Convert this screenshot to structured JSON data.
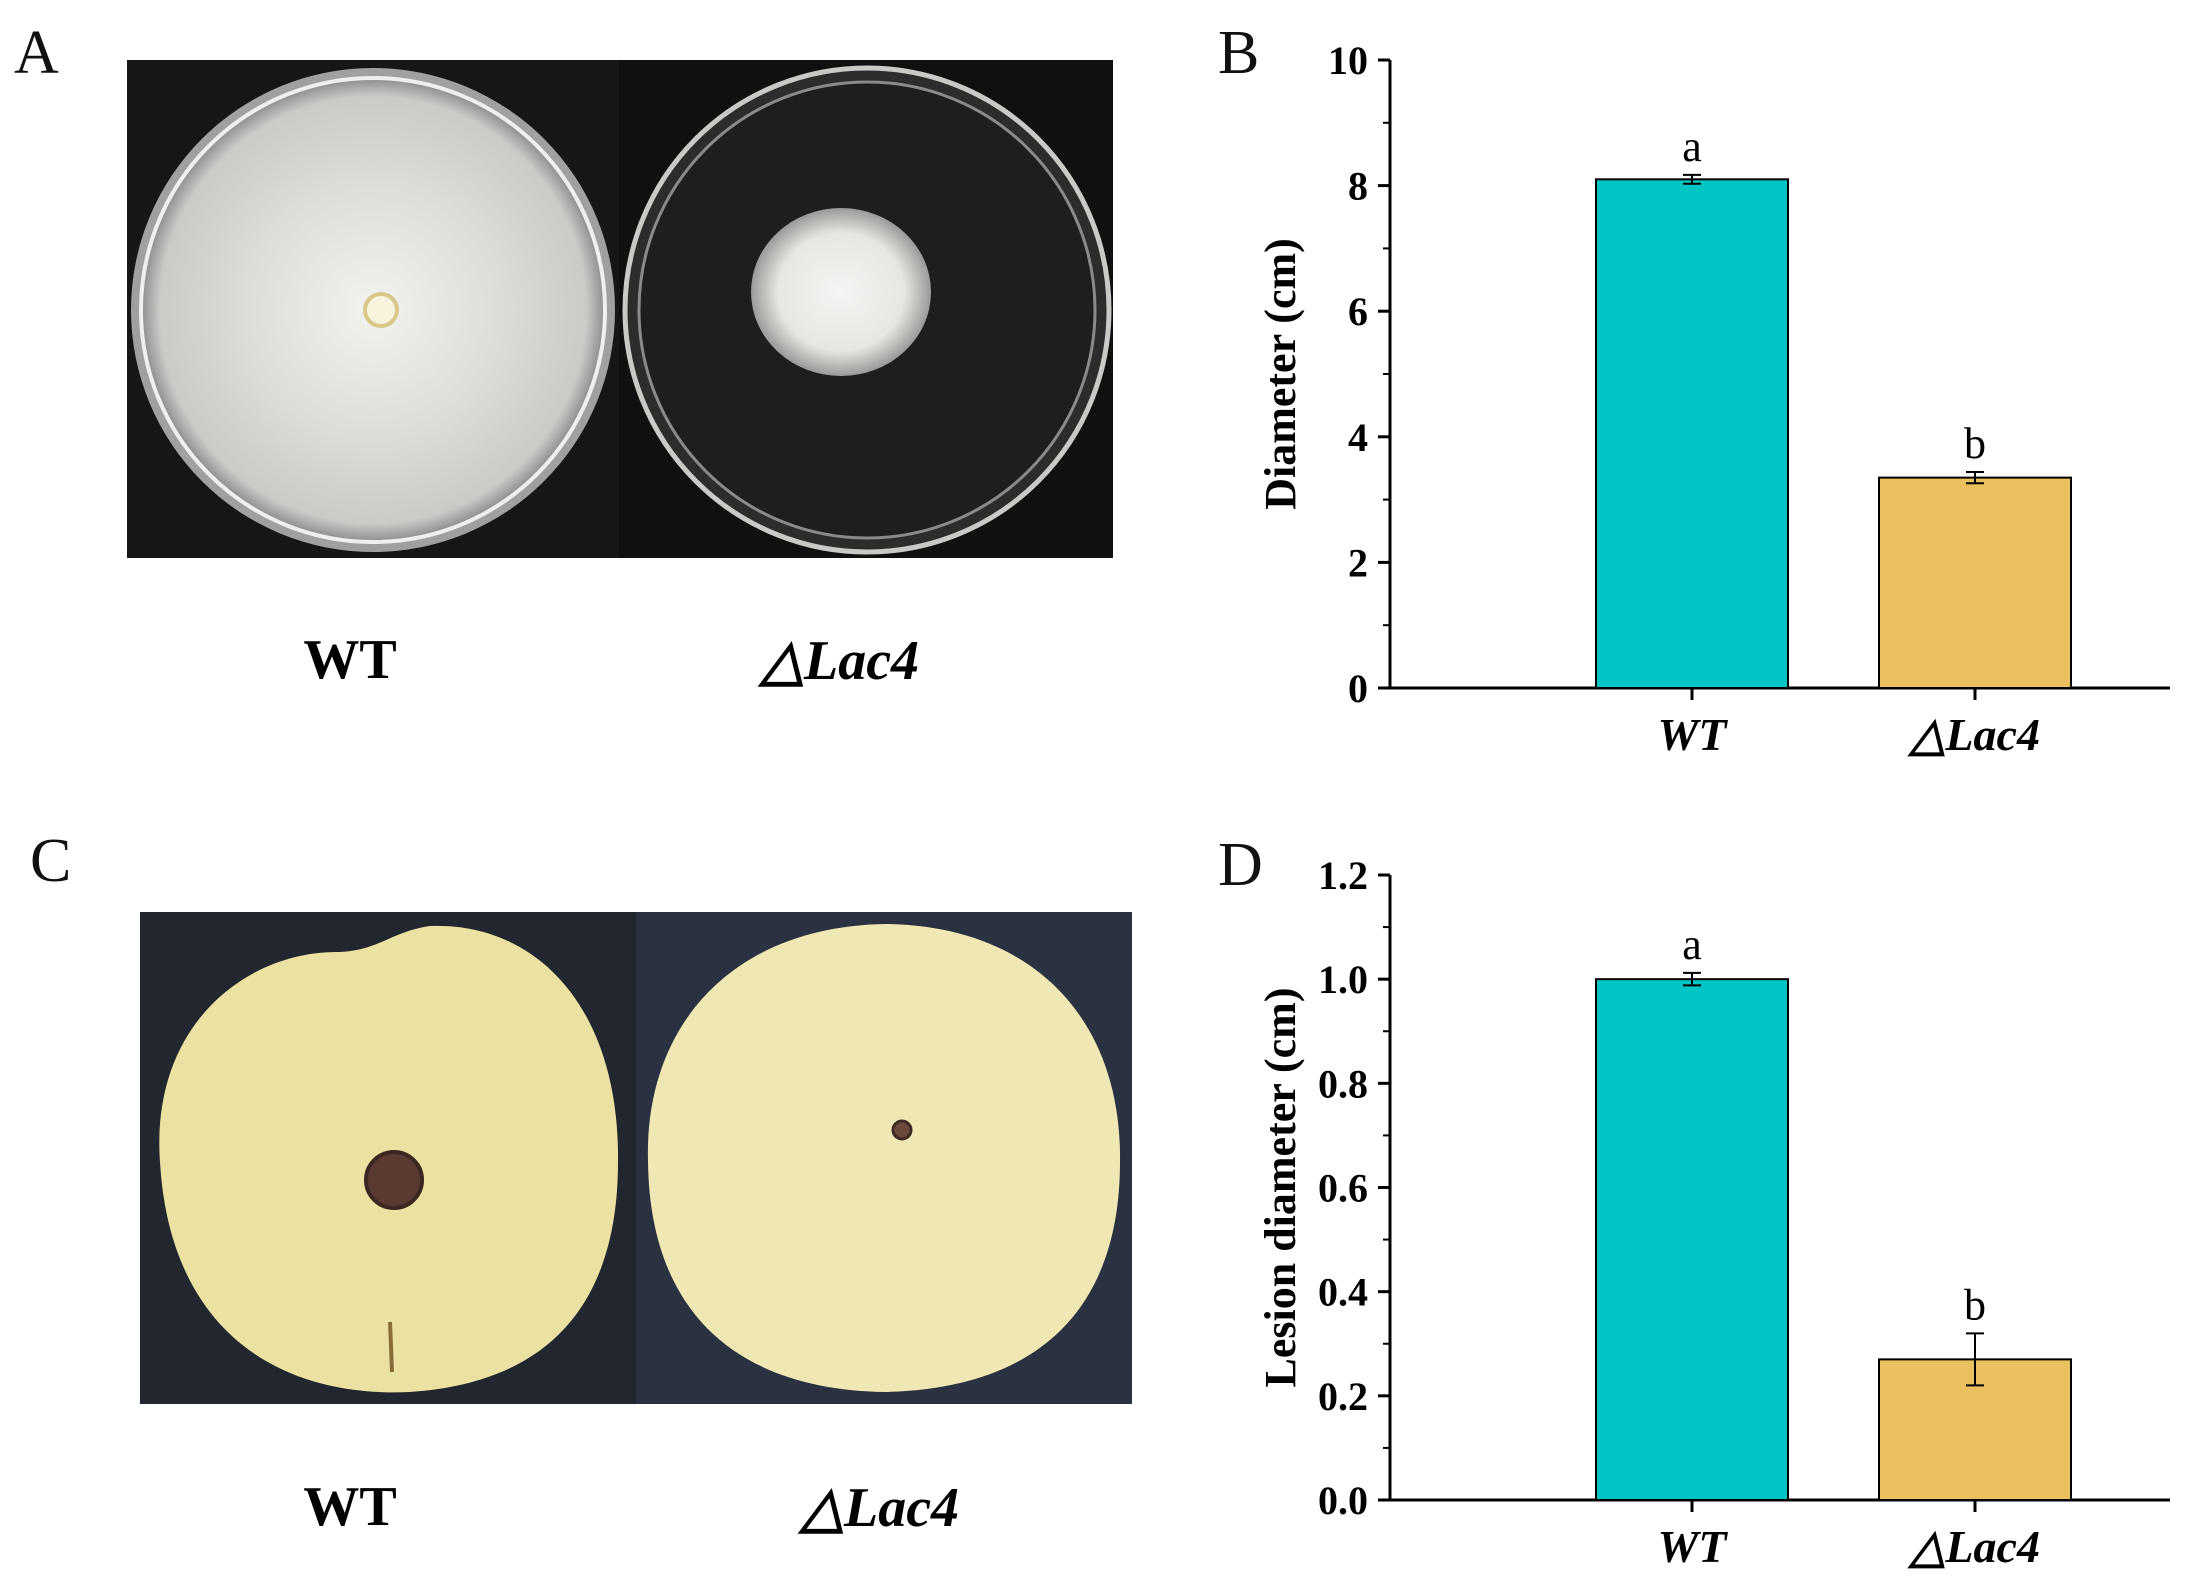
{
  "panels": {
    "A": {
      "letter": "A",
      "labels": [
        "WT",
        "△Lac4"
      ],
      "images": [
        {
          "name": "wt-colony-petri-dish",
          "description_icon": "petri-dish-full-growth-icon"
        },
        {
          "name": "lac4-colony-petri-dish",
          "description_icon": "petri-dish-small-colony-icon"
        }
      ]
    },
    "B": {
      "letter": "B"
    },
    "C": {
      "letter": "C",
      "labels": [
        "WT",
        "△Lac4"
      ],
      "images": [
        {
          "name": "wt-pear-lesion",
          "description_icon": "pear-large-lesion-icon"
        },
        {
          "name": "lac4-pear-lesion",
          "description_icon": "pear-small-lesion-icon"
        }
      ]
    },
    "D": {
      "letter": "D"
    }
  },
  "colors": {
    "wt_bar": "#00C5C5",
    "lac4_bar": "#EBC05F",
    "photo_background": "#1a1a1a",
    "pear_background": "#252a33",
    "pear_skin": "#ece3a6"
  },
  "chart_data": [
    {
      "panel": "B",
      "type": "bar",
      "categories": [
        "WT",
        "△Lac4"
      ],
      "values": [
        8.1,
        3.35
      ],
      "errors": [
        0.07,
        0.09
      ],
      "significance": [
        "a",
        "b"
      ],
      "ylabel": "Diameter (cm)",
      "ylim": [
        0,
        10
      ],
      "yticks": [
        "0",
        "2",
        "4",
        "6",
        "8",
        "10"
      ],
      "ytick_values": [
        0,
        2,
        4,
        6,
        8,
        10
      ],
      "colors": [
        "#00C5C5",
        "#EBC05F"
      ]
    },
    {
      "panel": "D",
      "type": "bar",
      "categories": [
        "WT",
        "△Lac4"
      ],
      "values": [
        1.0,
        0.27
      ],
      "errors": [
        0.012,
        0.05
      ],
      "significance": [
        "a",
        "b"
      ],
      "ylabel": "Lesion diameter (cm)",
      "ylim": [
        0,
        1.2
      ],
      "yticks": [
        "0.0",
        "0.2",
        "0.4",
        "0.6",
        "0.8",
        "1.0",
        "1.2"
      ],
      "ytick_values": [
        0,
        0.2,
        0.4,
        0.6,
        0.8,
        1.0,
        1.2
      ],
      "colors": [
        "#00C5C5",
        "#EBC05F"
      ]
    }
  ]
}
